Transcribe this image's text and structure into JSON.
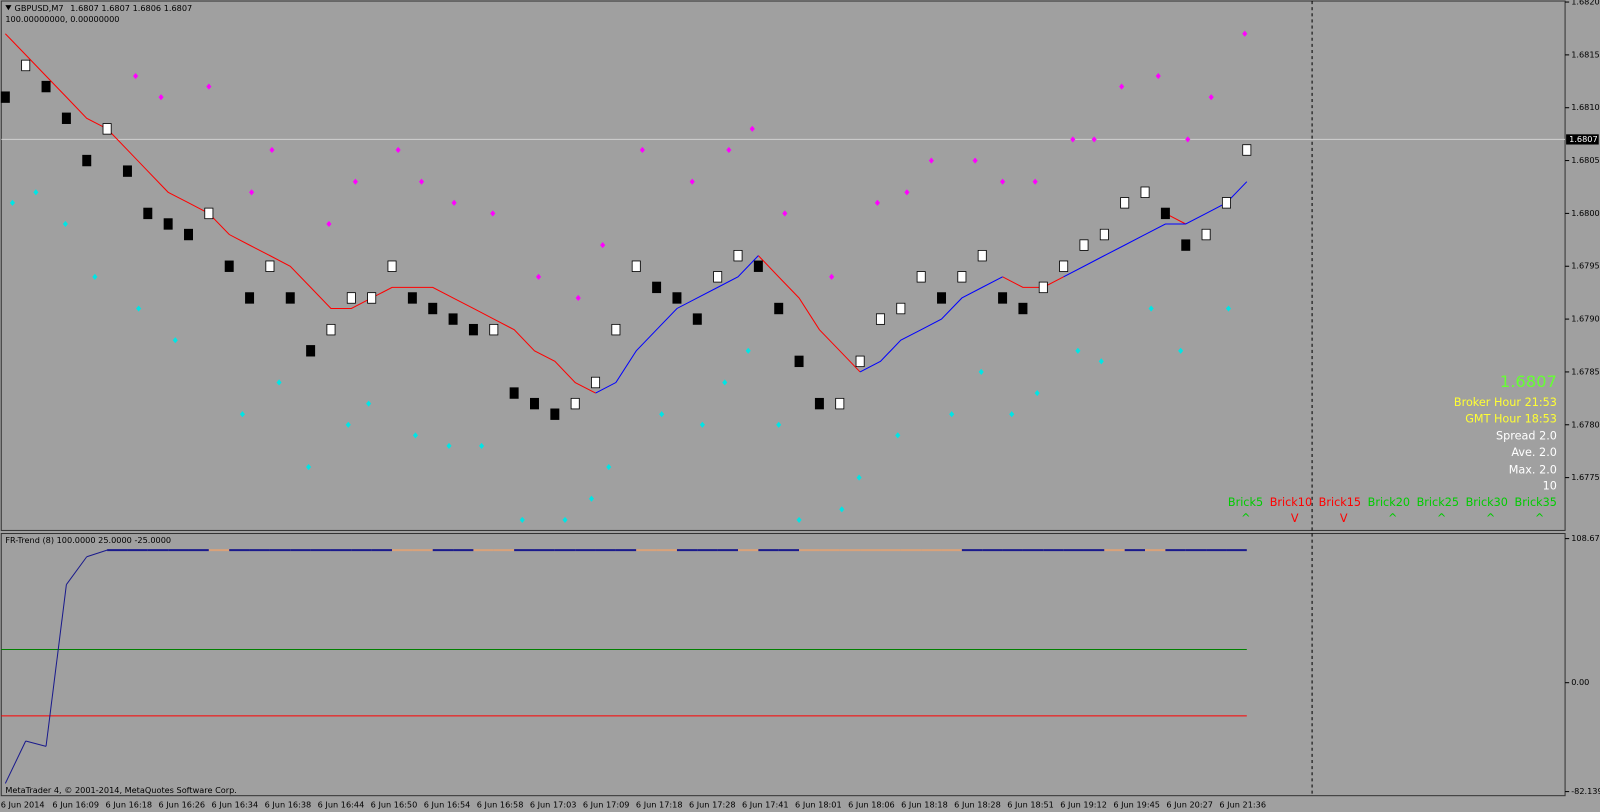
{
  "window": {
    "symbol": "GBPUSD,M7",
    "ohlc": [
      1.6807,
      1.6807,
      1.6806,
      1.6807
    ],
    "scale": "100.00000000, 0.00000000",
    "footer": "MetaTrader 4, © 2001-2014, MetaQuotes Software Corp."
  },
  "chart_data": [
    {
      "type": "renko",
      "color_up": "#ffffff",
      "color_down": "#000000",
      "values": [
        1.6811,
        1.6814,
        1.6812,
        1.6809,
        1.6805,
        1.6808,
        1.6804,
        1.68,
        1.6799,
        1.6798,
        1.68,
        1.6795,
        1.6792,
        1.6795,
        1.6792,
        1.6787,
        1.6789,
        1.6792,
        1.6792,
        1.6795,
        1.6792,
        1.6791,
        1.679,
        1.6789,
        1.6789,
        1.6783,
        1.6782,
        1.6781,
        1.6782,
        1.6784,
        1.6789,
        1.6795,
        1.6793,
        1.6792,
        1.679,
        1.6794,
        1.6796,
        1.6795,
        1.6791,
        1.6786,
        1.6782,
        1.6782,
        1.6786,
        1.679,
        1.6791,
        1.6794,
        1.6792,
        1.6794,
        1.6796,
        1.6792,
        1.6791,
        1.6793,
        1.6795,
        1.6797,
        1.6798,
        1.6801,
        1.6802,
        1.68,
        1.6797,
        1.6798,
        1.6801,
        1.6806
      ],
      "ma_series": [
        {
          "color": "#ff0000",
          "values": [
            1.6817,
            1.6815,
            1.6813,
            1.6811,
            1.6809,
            1.6808,
            1.6806,
            1.6804,
            1.6802,
            1.6801,
            1.68,
            1.6798,
            1.6797,
            1.6796,
            1.6795,
            1.6793,
            1.6791,
            1.6791,
            1.6792,
            1.6793,
            1.6793,
            1.6793,
            1.6792,
            1.6791,
            1.679,
            1.6789,
            1.6787,
            1.6786,
            1.6784,
            1.6783,
            null,
            null,
            null,
            null,
            null,
            null,
            null,
            1.6796,
            1.6794,
            1.6792,
            1.6789,
            1.6787,
            1.6785,
            null,
            null,
            null,
            null,
            null,
            null,
            1.6794,
            1.6793,
            1.6793,
            1.6794,
            null,
            null,
            null,
            null,
            1.68,
            1.6799,
            null,
            null,
            null
          ]
        },
        {
          "color": "#0000ff",
          "values": [
            null,
            null,
            null,
            null,
            null,
            null,
            null,
            null,
            null,
            null,
            null,
            null,
            null,
            null,
            null,
            null,
            null,
            null,
            null,
            null,
            null,
            null,
            null,
            null,
            null,
            null,
            null,
            null,
            null,
            1.6783,
            1.6784,
            1.6787,
            1.6789,
            1.6791,
            1.6792,
            1.6793,
            1.6794,
            1.6796,
            null,
            null,
            null,
            null,
            1.6785,
            1.6786,
            1.6788,
            1.6789,
            1.679,
            1.6792,
            1.6793,
            1.6794,
            null,
            null,
            1.6794,
            1.6795,
            1.6796,
            1.6797,
            1.6798,
            1.6799,
            1.6799,
            1.68,
            1.6801,
            1.6803
          ]
        }
      ],
      "dot_series": [
        {
          "color": "#ff00ff",
          "x": [
            6.4,
            7.65,
            10.0,
            12.1,
            13.1,
            15.9,
            17.2,
            19.3,
            20.45,
            22.05,
            23.95,
            26.2,
            28.15,
            29.35,
            31.3,
            33.75,
            35.55,
            36.7,
            38.3,
            40.6,
            42.85,
            44.3,
            45.5,
            47.65,
            49.0,
            50.6,
            52.45,
            53.5,
            54.85,
            56.65,
            58.1,
            59.25,
            60.9
          ],
          "values": [
            1.6813,
            1.6811,
            1.6812,
            1.6802,
            1.6806,
            1.6799,
            1.6803,
            1.6806,
            1.6803,
            1.6801,
            1.68,
            1.6794,
            1.6792,
            1.6797,
            1.6806,
            1.6803,
            1.6806,
            1.6808,
            1.68,
            1.6794,
            1.6801,
            1.6802,
            1.6805,
            1.6805,
            1.6803,
            1.6803,
            1.6807,
            1.6807,
            1.6812,
            1.6813,
            1.6807,
            1.6811,
            1.6817
          ]
        },
        {
          "color": "#00e5e5",
          "x": [
            0.35,
            1.5,
            2.95,
            4.4,
            6.55,
            8.35,
            11.65,
            13.45,
            14.9,
            16.85,
            17.85,
            20.15,
            21.8,
            23.4,
            25.4,
            27.5,
            28.8,
            29.65,
            32.25,
            34.25,
            35.35,
            36.5,
            38.0,
            39.0,
            41.1,
            41.95,
            43.85,
            46.5,
            47.95,
            49.45,
            50.7,
            52.7,
            53.85,
            56.3,
            57.75,
            60.1
          ],
          "values": [
            1.6801,
            1.6802,
            1.6799,
            1.6794,
            1.6791,
            1.6788,
            1.6781,
            1.6784,
            1.6776,
            1.678,
            1.6782,
            1.6779,
            1.6778,
            1.6778,
            1.6771,
            1.6771,
            1.6773,
            1.6776,
            1.6781,
            1.678,
            1.6784,
            1.6787,
            1.678,
            1.6771,
            1.6772,
            1.6775,
            1.6779,
            1.6781,
            1.6785,
            1.6781,
            1.6783,
            1.6787,
            1.6786,
            1.6791,
            1.6787,
            1.6791
          ]
        }
      ],
      "last_price": 1.6807,
      "ylim": [
        1.677,
        1.682
      ],
      "yticks": [
        {
          "value": 1.682,
          "label": "1.6820"
        },
        1.6815,
        {
          "value": 1.681,
          "label": "1.6810"
        },
        1.6805,
        {
          "value": 1.68,
          "label": "1.6800"
        },
        1.6795,
        {
          "value": 1.679,
          "label": "1.6790"
        },
        1.6785,
        {
          "value": 1.678,
          "label": "1.6780"
        },
        1.6775
      ],
      "x_labels": [
        "6 Jun 2014",
        "6 Jun 16:09",
        "6 Jun 16:18",
        "6 Jun 16:26",
        "6 Jun 16:34",
        "6 Jun 16:38",
        "6 Jun 16:44",
        "6 Jun 16:50",
        "6 Jun 16:54",
        "6 Jun 16:58",
        "6 Jun 17:03",
        "6 Jun 17:09",
        "6 Jun 17:18",
        "6 Jun 17:28",
        "6 Jun 17:41",
        "6 Jun 18:01",
        "6 Jun 18:06",
        "6 Jun 18:18",
        "6 Jun 18:28",
        "6 Jun 18:51",
        "6 Jun 19:12",
        "6 Jun 19:45",
        "6 Jun 20:27",
        "6 Jun 21:36"
      ]
    },
    {
      "type": "line",
      "title": "FR-Trend (8) 100.0000 25.0000 -25.0000",
      "values": [
        -76,
        -44,
        -48,
        74,
        95,
        100,
        100,
        100,
        100,
        100,
        100,
        100,
        100,
        100,
        100,
        100,
        100,
        100,
        100,
        100,
        100,
        100,
        100,
        100,
        100,
        100,
        100,
        100,
        100,
        100,
        100,
        100,
        100,
        100,
        100,
        100,
        100,
        100,
        100,
        100,
        100,
        100,
        100,
        100,
        100,
        100,
        100,
        100,
        100,
        100,
        100,
        100,
        100,
        100,
        100,
        100,
        100,
        100,
        100,
        100,
        100,
        100
      ],
      "colors": [
        "#1a1a8c",
        "#1a1a8c",
        "#1a1a8c",
        "#1a1a8c",
        "#1a1a8c",
        "#1a1a8c",
        "#1a1a8c",
        "#1a1a8c",
        "#1a1a8c",
        "#1a1a8c",
        "#1a1a8c",
        "#d9a27a",
        "#1a1a8c",
        "#1a1a8c",
        "#1a1a8c",
        "#1a1a8c",
        "#1a1a8c",
        "#1a1a8c",
        "#1a1a8c",
        "#1a1a8c",
        "#d9a27a",
        "#d9a27a",
        "#1a1a8c",
        "#1a1a8c",
        "#d9a27a",
        "#d9a27a",
        "#1a1a8c",
        "#1a1a8c",
        "#1a1a8c",
        "#1a1a8c",
        "#1a1a8c",
        "#1a1a8c",
        "#d9a27a",
        "#d9a27a",
        "#1a1a8c",
        "#1a1a8c",
        "#1a1a8c",
        "#d9a27a",
        "#1a1a8c",
        "#1a1a8c",
        "#d9a27a",
        "#d9a27a",
        "#d9a27a",
        "#d9a27a",
        "#d9a27a",
        "#d9a27a",
        "#d9a27a",
        "#d9a27a",
        "#1a1a8c",
        "#1a1a8c",
        "#1a1a8c",
        "#1a1a8c",
        "#1a1a8c",
        "#1a1a8c",
        "#1a1a8c",
        "#d9a27a",
        "#1a1a8c",
        "#d9a27a",
        "#1a1a8c",
        "#1a1a8c",
        "#1a1a8c",
        "#1a1a8c"
      ],
      "levels": [
        {
          "value": 25,
          "color": "#008000"
        },
        {
          "value": -25,
          "color": "#ff0000"
        }
      ],
      "ylim": [
        -82.1395,
        108.6733
      ],
      "yticks": [
        108.6733,
        {
          "value": 0,
          "label": "0.00"
        },
        -82.1395
      ]
    }
  ],
  "info_panel": {
    "broker_hour": "Broker Hour  21:53",
    "gmt_hour": "GMT Hour  18:53",
    "spread": "Spread 2.0",
    "average": "Ave. 2.0",
    "maximum": "Max. 2.0",
    "bars": "10",
    "bricks": [
      {
        "label": "Brick5",
        "arrow": "^",
        "color": "#00cc00"
      },
      {
        "label": "Brick10",
        "arrow": "V",
        "color": "#ff0000"
      },
      {
        "label": "Brick15",
        "arrow": "V",
        "color": "#ff0000"
      },
      {
        "label": "Brick20",
        "arrow": "^",
        "color": "#00cc00"
      },
      {
        "label": "Brick25",
        "arrow": "^",
        "color": "#00cc00"
      },
      {
        "label": "Brick30",
        "arrow": "^",
        "color": "#00cc00"
      },
      {
        "label": "Brick35",
        "arrow": "^",
        "color": "#00cc00"
      }
    ]
  }
}
